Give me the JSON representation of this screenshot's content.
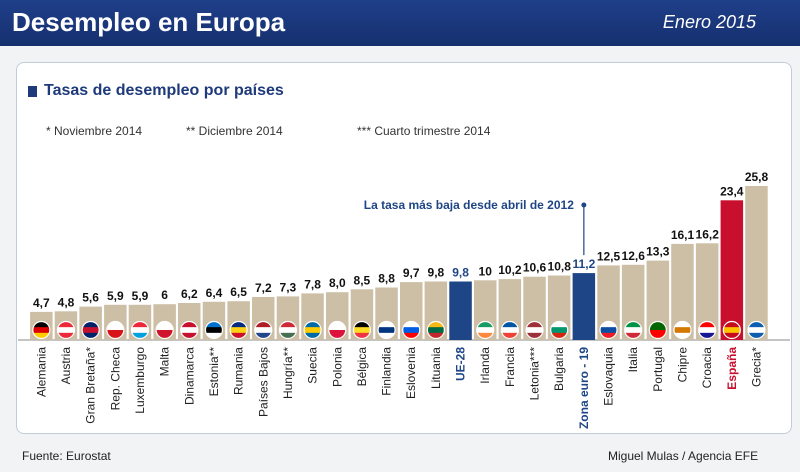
{
  "header": {
    "title": "Desempleo en Europa",
    "date": "Enero 2015"
  },
  "section_title": "Tasas de desempleo por países",
  "notes": [
    "* Noviembre 2014",
    "** Diciembre 2014",
    "*** Cuarto trimestre 2014"
  ],
  "source": "Fuente: Eurostat",
  "credit": "Miguel Mulas / Agencia EFE",
  "colors": {
    "bar": "#cdbfa6",
    "highlight_eu": "#1e4585",
    "highlight_spain": "#c8102e",
    "header": "#1a3a80"
  },
  "chart_data": {
    "type": "bar",
    "title": "Tasas de desempleo por países",
    "categories": [
      "Alemania",
      "Austria",
      "Gran Bretaña*",
      "Rep. Checa",
      "Luxemburgo",
      "Malta",
      "Dinamarca",
      "Estonia**",
      "Rumania",
      "Países Bajos",
      "Hungría**",
      "Suecia",
      "Polonia",
      "Bélgica",
      "Finlandia",
      "Eslovenia",
      "Lituania",
      "UE-28",
      "Irlanda",
      "Francia",
      "Letonia***",
      "Bulgaria",
      "Zona euro - 19",
      "Eslovaquia",
      "Italia",
      "Portugal",
      "Chipre",
      "Croacia",
      "España",
      "Grecia*"
    ],
    "value_labels": [
      "4,7",
      "4,8",
      "5,6",
      "5,9",
      "5,9",
      "6",
      "6,2",
      "6,4",
      "6,5",
      "7,2",
      "7,3",
      "7,8",
      "8,0",
      "8,5",
      "8,8",
      "9,7",
      "9,8",
      "9,8",
      "10",
      "10,2",
      "10,6",
      "10,8",
      "11,2",
      "12,5",
      "12,6",
      "13,3",
      "16,1",
      "16,2",
      "23,4",
      "25,8"
    ],
    "values": [
      4.7,
      4.8,
      5.6,
      5.9,
      5.9,
      6.0,
      6.2,
      6.4,
      6.5,
      7.2,
      7.3,
      7.8,
      8.0,
      8.5,
      8.8,
      9.7,
      9.8,
      9.8,
      10.0,
      10.2,
      10.6,
      10.8,
      11.2,
      12.5,
      12.6,
      13.3,
      16.1,
      16.2,
      23.4,
      25.8
    ],
    "highlight": {
      "UE-28": "eu",
      "Zona euro - 19": "eu",
      "España": "spain"
    },
    "annotation": {
      "text": "La tasa más baja desde abril de 2012",
      "target": "Zona euro - 19"
    },
    "ylim": [
      0,
      27
    ],
    "xlabel": "",
    "ylabel": ""
  }
}
